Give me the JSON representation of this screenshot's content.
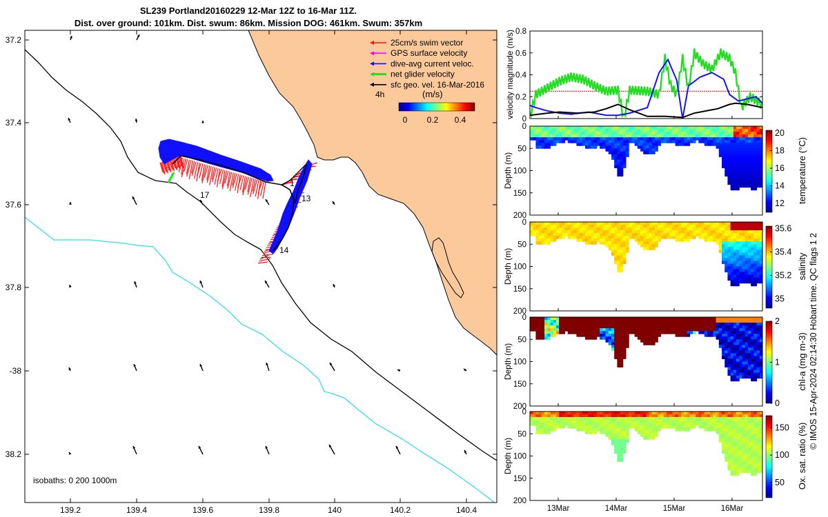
{
  "header": {
    "title_line1": "SL239 Portland20160229 12-Mar 12Z to 16-Mar 11Z.",
    "title_line2": "Dist. over ground: 101km. Dist. swum: 86km. Mission DOG: 461km. Swum: 357km"
  },
  "colors": {
    "land": "#fbc99a",
    "track_blue": "#1010ff",
    "swim_red": "#ff1010",
    "gps_magenta": "#ff00ff",
    "net_green": "#22dd22",
    "isobath_200": "#000000",
    "isobath_1000": "#33dddd"
  },
  "chart_data": [
    {
      "type": "map",
      "lon_ticks": [
        "139.2",
        "139.4",
        "139.6",
        "139.8",
        "140",
        "140.2",
        "140.4"
      ],
      "lat_ticks": [
        "37.2",
        "37.4",
        "37.6",
        "37.8",
        "-38",
        "38.2"
      ],
      "legend": [
        {
          "label": "25cm/s swim vector",
          "color": "#ff1010"
        },
        {
          "label": "GPS surface velocity",
          "color": "#ff00ff"
        },
        {
          "label": "dive-avg current veloc.",
          "color": "#1010ff"
        },
        {
          "label": "net glider velocity",
          "color": "#22dd22"
        },
        {
          "label": "sfc geo. vel. 16-Mar-2016",
          "color": "#000000"
        }
      ],
      "legend_extra": "4h",
      "colorbar": {
        "label": "(m/s)",
        "ticks": [
          "0",
          "0.2",
          "0.4"
        ]
      },
      "track_labels": [
        "17",
        "1",
        "13",
        "14"
      ],
      "isobath_note": "isobaths: 0   200  1000m"
    },
    {
      "type": "line",
      "ylabel": "velocity magnitude (m/s)",
      "y_ticks": [
        "0",
        "0.2",
        "0.4",
        "0.6",
        "0.8"
      ],
      "ylim": [
        0,
        0.8
      ],
      "xlim": [
        12.5,
        16.46
      ],
      "series": [
        {
          "color": "#ff1010",
          "values": [
            [
              12.5,
              0.25
            ],
            [
              16.46,
              0.25
            ]
          ]
        },
        {
          "color": "#22dd22",
          "values": [
            [
              12.5,
              0.02
            ],
            [
              12.6,
              0.22
            ],
            [
              12.8,
              0.28
            ],
            [
              13.0,
              0.34
            ],
            [
              13.2,
              0.38
            ],
            [
              13.4,
              0.36
            ],
            [
              13.6,
              0.3
            ],
            [
              13.8,
              0.25
            ],
            [
              14.0,
              0.26
            ],
            [
              14.1,
              0.0
            ],
            [
              14.2,
              0.26
            ],
            [
              14.5,
              0.25
            ],
            [
              14.7,
              0.22
            ],
            [
              14.8,
              0.55
            ],
            [
              14.9,
              0.3
            ],
            [
              15.0,
              0.22
            ],
            [
              15.1,
              0.55
            ],
            [
              15.2,
              0.28
            ],
            [
              15.3,
              0.6
            ],
            [
              15.45,
              0.5
            ],
            [
              15.6,
              0.45
            ],
            [
              15.75,
              0.6
            ],
            [
              15.9,
              0.55
            ],
            [
              16.0,
              0.42
            ],
            [
              16.1,
              0.1
            ],
            [
              16.25,
              0.2
            ],
            [
              16.4,
              0.15
            ],
            [
              16.46,
              0.14
            ]
          ]
        },
        {
          "color": "#1010ff",
          "values": [
            [
              12.5,
              0.12
            ],
            [
              12.6,
              0.1
            ],
            [
              12.8,
              0.07
            ],
            [
              13.0,
              0.05
            ],
            [
              13.2,
              0.04
            ],
            [
              13.5,
              0.06
            ],
            [
              13.8,
              0.03
            ],
            [
              14.0,
              0.03
            ],
            [
              14.2,
              0.05
            ],
            [
              14.5,
              0.1
            ],
            [
              14.7,
              0.42
            ],
            [
              14.85,
              0.54
            ],
            [
              15.0,
              0.35
            ],
            [
              15.1,
              0.0
            ],
            [
              15.2,
              0.3
            ],
            [
              15.4,
              0.38
            ],
            [
              15.6,
              0.42
            ],
            [
              15.8,
              0.36
            ],
            [
              15.9,
              0.22
            ],
            [
              16.05,
              0.16
            ],
            [
              16.2,
              0.18
            ],
            [
              16.35,
              0.2
            ],
            [
              16.46,
              0.14
            ]
          ]
        },
        {
          "color": "#000000",
          "values": [
            [
              12.5,
              0.03
            ],
            [
              12.8,
              0.05
            ],
            [
              13.0,
              0.06
            ],
            [
              13.3,
              0.05
            ],
            [
              13.6,
              0.06
            ],
            [
              13.8,
              0.09
            ],
            [
              14.0,
              0.13
            ],
            [
              14.2,
              0.08
            ],
            [
              14.5,
              0.02
            ],
            [
              14.8,
              0.02
            ],
            [
              15.1,
              0.01
            ],
            [
              15.3,
              0.05
            ],
            [
              15.5,
              0.07
            ],
            [
              15.7,
              0.09
            ],
            [
              15.9,
              0.13
            ],
            [
              16.0,
              0.14
            ],
            [
              16.2,
              0.13
            ],
            [
              16.46,
              0.1
            ]
          ]
        }
      ]
    },
    {
      "type": "heatmap",
      "ylabel": "Depth (m)",
      "variable_label": "temperature (°C)",
      "y_ticks": [
        "0",
        "50",
        "100",
        "150",
        "200"
      ],
      "colorbar_ticks": [
        "12",
        "14",
        "16",
        "18",
        "20"
      ],
      "clim": [
        11,
        20.3
      ]
    },
    {
      "type": "heatmap",
      "ylabel": "Depth (m)",
      "variable_label": "salinity",
      "y_ticks": [
        "0",
        "50",
        "100",
        "150",
        "200"
      ],
      "colorbar_ticks": [
        "35",
        "35.2",
        "35.4",
        "35.6"
      ],
      "clim": [
        34.92,
        35.62
      ]
    },
    {
      "type": "heatmap",
      "ylabel": "Depth (m)",
      "variable_label": "chl-a (mg m-3)",
      "y_ticks": [
        "0",
        "50",
        "100",
        "150",
        "200"
      ],
      "colorbar_ticks": [
        "0",
        "1",
        "2"
      ],
      "clim": [
        0,
        2
      ]
    },
    {
      "type": "heatmap",
      "ylabel": "Depth (m)",
      "variable_label": "Ox. sat. ratio (%)",
      "y_ticks": [
        "0",
        "50",
        "100",
        "150",
        "200"
      ],
      "colorbar_ticks": [
        "50",
        "100",
        "150"
      ],
      "clim": [
        22,
        172
      ]
    }
  ],
  "time_axis": {
    "ticks": [
      "13Mar",
      "14Mar",
      "15Mar",
      "16Mar"
    ]
  },
  "footer": {
    "credit": "© IMOS 15-Apr-2024 02:14:30 Hobart time. QC flags 1  2"
  }
}
